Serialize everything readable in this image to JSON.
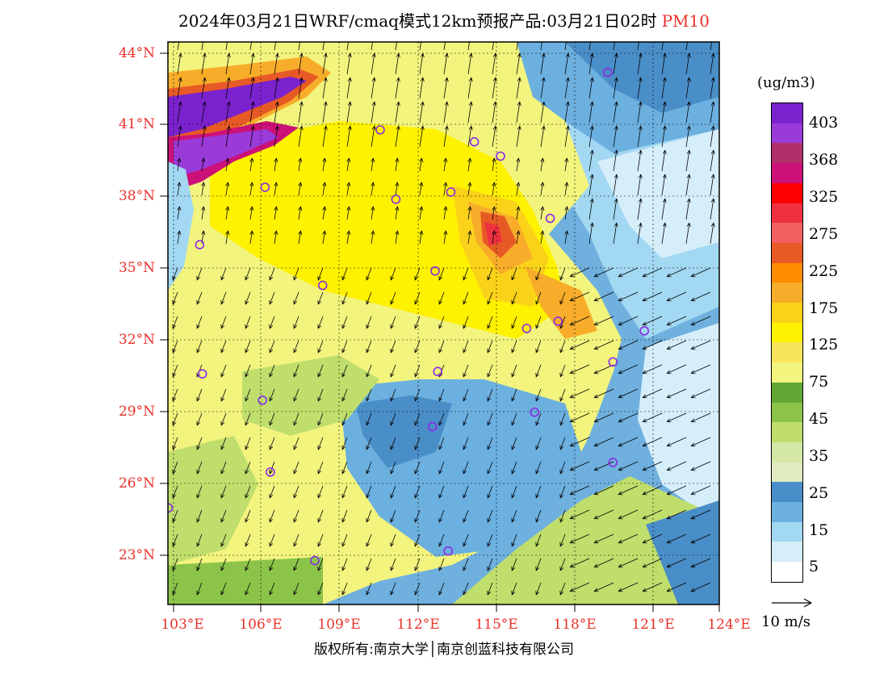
{
  "title": {
    "main": "2024年03月21日WRF/cmaq模式12km预报产品:03月21日02时",
    "pollutant": "PM10"
  },
  "axes": {
    "lat_ticks": [
      "44°N",
      "41°N",
      "38°N",
      "35°N",
      "32°N",
      "29°N",
      "26°N",
      "23°N"
    ],
    "lon_ticks": [
      "103°E",
      "106°E",
      "109°E",
      "112°E",
      "115°E",
      "118°E",
      "121°E",
      "124°E"
    ]
  },
  "legend": {
    "unit": "(ug/m3)",
    "labels": [
      "403",
      "368",
      "325",
      "275",
      "225",
      "175",
      "125",
      "75",
      "45",
      "35",
      "25",
      "15",
      "5"
    ],
    "colors": [
      "#7b22cf",
      "#9a3ad8",
      "#b0306a",
      "#cc1178",
      "#ff0000",
      "#ee3040",
      "#f26060",
      "#e85a25",
      "#ff8c00",
      "#f7ad2a",
      "#fbd21a",
      "#fff200",
      "#f7e45a",
      "#f2f47e",
      "#62a636",
      "#8cc44a",
      "#c0de6c",
      "#d6e8a6",
      "#e0ecc0",
      "#4a8ec8",
      "#6cb0e0",
      "#a3d8f2",
      "#d6eefa",
      "#ffffff"
    ]
  },
  "wind_reference": {
    "label": "10 m/s"
  },
  "copyright": "版权所有:南京大学│南京创蓝科技有限公司",
  "stations": [
    {
      "lon": 119.6,
      "lat": 43.2
    },
    {
      "lon": 110.9,
      "lat": 40.8
    },
    {
      "lon": 114.5,
      "lat": 40.3
    },
    {
      "lon": 115.5,
      "lat": 39.7
    },
    {
      "lon": 106.5,
      "lat": 38.4
    },
    {
      "lon": 111.5,
      "lat": 37.9
    },
    {
      "lon": 113.6,
      "lat": 38.2
    },
    {
      "lon": 117.4,
      "lat": 37.1
    },
    {
      "lon": 104.0,
      "lat": 36.0
    },
    {
      "lon": 113.0,
      "lat": 34.9
    },
    {
      "lon": 108.7,
      "lat": 34.3
    },
    {
      "lon": 117.7,
      "lat": 32.8
    },
    {
      "lon": 116.5,
      "lat": 32.5
    },
    {
      "lon": 121.0,
      "lat": 32.4
    },
    {
      "lon": 119.8,
      "lat": 31.1
    },
    {
      "lon": 104.1,
      "lat": 30.6
    },
    {
      "lon": 113.1,
      "lat": 30.7
    },
    {
      "lon": 106.4,
      "lat": 29.5
    },
    {
      "lon": 116.8,
      "lat": 29.0
    },
    {
      "lon": 112.9,
      "lat": 28.4
    },
    {
      "lon": 119.8,
      "lat": 26.9
    },
    {
      "lon": 106.7,
      "lat": 26.5
    },
    {
      "lon": 102.8,
      "lat": 25.0
    },
    {
      "lon": 113.5,
      "lat": 23.2
    },
    {
      "lon": 108.4,
      "lat": 22.8
    }
  ]
}
